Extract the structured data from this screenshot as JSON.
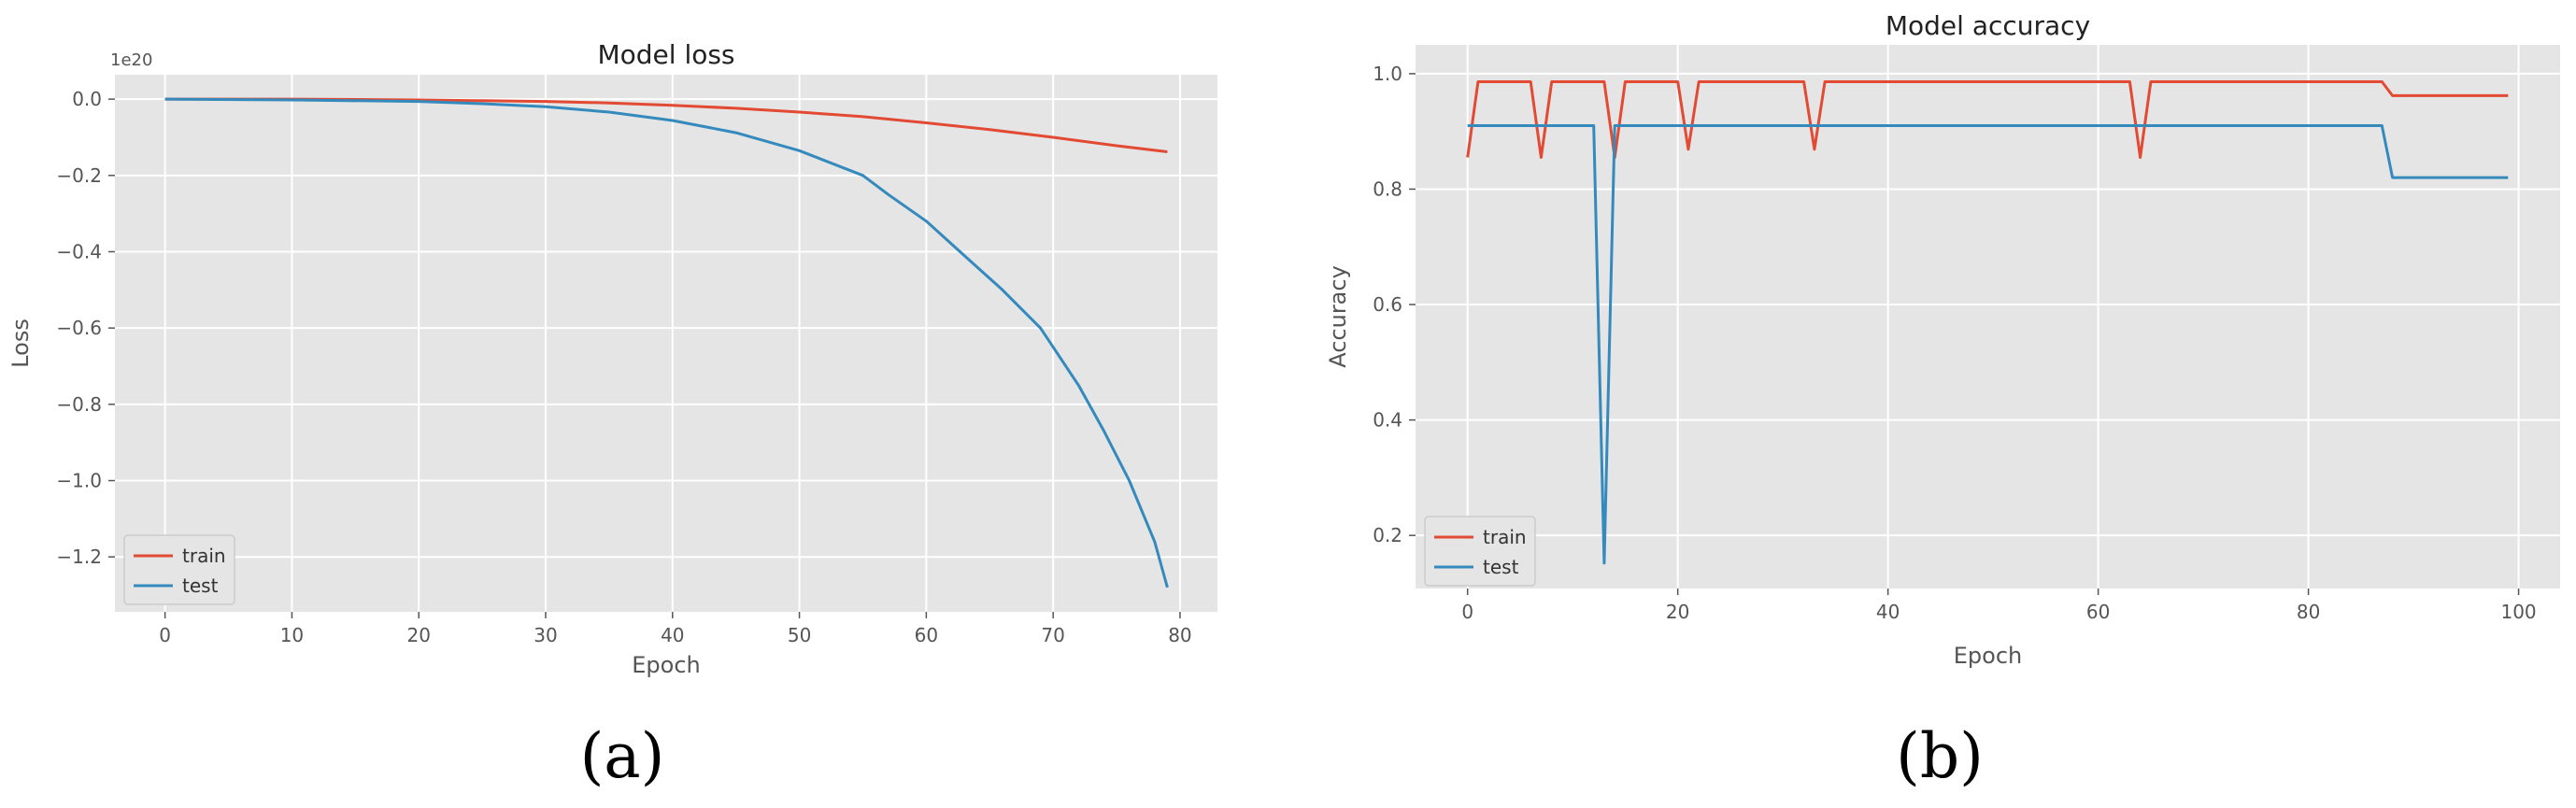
{
  "colors": {
    "train": "#e24a33",
    "test": "#348abd",
    "axes_bg": "#e5e5e5",
    "grid": "#ffffff",
    "text": "#555555"
  },
  "chart_data": [
    {
      "type": "line",
      "caption": "(a)",
      "title": "Model loss",
      "xlabel": "Epoch",
      "ylabel": "Loss",
      "y_scale_label": "1e20",
      "grid": true,
      "legend_position": "lower-left",
      "xlim": [
        -3.95,
        82.95
      ],
      "ylim": [
        -1.344,
        0.064
      ],
      "xticks": [
        0,
        10,
        20,
        30,
        40,
        50,
        60,
        70,
        80
      ],
      "xtick_labels": [
        "0",
        "10",
        "20",
        "30",
        "40",
        "50",
        "60",
        "70",
        "80"
      ],
      "yticks": [
        0.0,
        -0.2,
        -0.4,
        -0.6,
        -0.8,
        -1.0,
        -1.2
      ],
      "ytick_labels": [
        "0.0",
        "−0.2",
        "−0.4",
        "−0.6",
        "−0.8",
        "−1.0",
        "−1.2"
      ],
      "series": [
        {
          "name": "train",
          "color": "#e24a33",
          "x": [
            0,
            10,
            20,
            25,
            30,
            35,
            40,
            45,
            50,
            55,
            60,
            65,
            70,
            75,
            79
          ],
          "y": [
            0,
            0,
            -0.002,
            -0.004,
            -0.006,
            -0.01,
            -0.016,
            -0.024,
            -0.034,
            -0.046,
            -0.062,
            -0.08,
            -0.1,
            -0.122,
            -0.138
          ]
        },
        {
          "name": "test",
          "color": "#348abd",
          "x": [
            0,
            10,
            20,
            25,
            30,
            35,
            40,
            45,
            50,
            55,
            57,
            60,
            63,
            66,
            69,
            72,
            74,
            76,
            78,
            79
          ],
          "y": [
            0,
            -0.002,
            -0.006,
            -0.012,
            -0.02,
            -0.034,
            -0.056,
            -0.088,
            -0.135,
            -0.2,
            -0.25,
            -0.32,
            -0.41,
            -0.5,
            -0.6,
            -0.75,
            -0.87,
            -1.0,
            -1.16,
            -1.28
          ]
        }
      ]
    },
    {
      "type": "line",
      "caption": "(b)",
      "title": "Model accuracy",
      "xlabel": "Epoch",
      "ylabel": "Accuracy",
      "grid": true,
      "legend_position": "lower-left",
      "xlim": [
        -4.95,
        103.95
      ],
      "ylim": [
        0.108,
        1.05
      ],
      "xticks": [
        0,
        20,
        40,
        60,
        80,
        100
      ],
      "xtick_labels": [
        "0",
        "20",
        "40",
        "60",
        "80",
        "100"
      ],
      "yticks": [
        0.2,
        0.4,
        0.6,
        0.8,
        1.0
      ],
      "ytick_labels": [
        "0.2",
        "0.4",
        "0.6",
        "0.8",
        "1.0"
      ],
      "series": [
        {
          "name": "train",
          "color": "#e24a33",
          "x": [
            0,
            1,
            6,
            7,
            8,
            13,
            14,
            15,
            20,
            21,
            22,
            32,
            33,
            34,
            63,
            64,
            65,
            87,
            88,
            99
          ],
          "y": [
            0.855,
            0.986,
            0.986,
            0.855,
            0.986,
            0.986,
            0.855,
            0.986,
            0.986,
            0.869,
            0.986,
            0.986,
            0.869,
            0.986,
            0.986,
            0.855,
            0.986,
            0.986,
            0.962,
            0.962
          ]
        },
        {
          "name": "test",
          "color": "#348abd",
          "x": [
            0,
            12,
            13,
            14,
            87,
            88,
            99
          ],
          "y": [
            0.91,
            0.91,
            0.152,
            0.91,
            0.91,
            0.82,
            0.82
          ]
        }
      ]
    }
  ]
}
